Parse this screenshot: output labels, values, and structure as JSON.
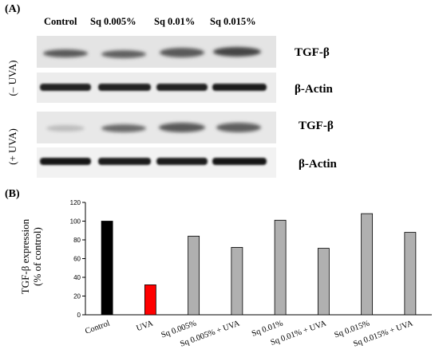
{
  "figure": {
    "panel_a_label": "(A)",
    "panel_b_label": "(B)",
    "lanes": [
      "Control",
      "Sq 0.005%",
      "Sq 0.01%",
      "Sq 0.015%"
    ],
    "conditions": [
      "(– UVA)",
      "(+ UVA)"
    ],
    "blot_labels": [
      "TGF-β",
      "β-Actin",
      "TGF-β",
      "β-Actin"
    ],
    "band_intensity_note": "",
    "y_axis_line1": "TGF-β expression",
    "y_axis_line2": "(% of control)"
  },
  "colors": {
    "control_bar": "#000000",
    "uva_bar": "#ff0000",
    "treatment_bar": "#b0b0b0"
  },
  "chart_data": {
    "type": "bar",
    "categories": [
      "Control",
      "UVA",
      "Sq 0.005%",
      "Sq 0.005% + UVA",
      "Sq 0.01%",
      "Sq 0.01% + UVA",
      "Sq 0.015%",
      "Sq 0.015% + UVA"
    ],
    "values": [
      100,
      32,
      84,
      72,
      101,
      71,
      108,
      88
    ],
    "bar_colors": [
      "#000000",
      "#ff0000",
      "#b0b0b0",
      "#b0b0b0",
      "#b0b0b0",
      "#b0b0b0",
      "#b0b0b0",
      "#b0b0b0"
    ],
    "title": "",
    "xlabel": "",
    "ylabel": "TGF-β expression (% of control)",
    "ylim": [
      0,
      120
    ],
    "yticks": [
      0,
      20,
      40,
      60,
      80,
      100,
      120
    ],
    "grid": false,
    "legend": "none"
  }
}
